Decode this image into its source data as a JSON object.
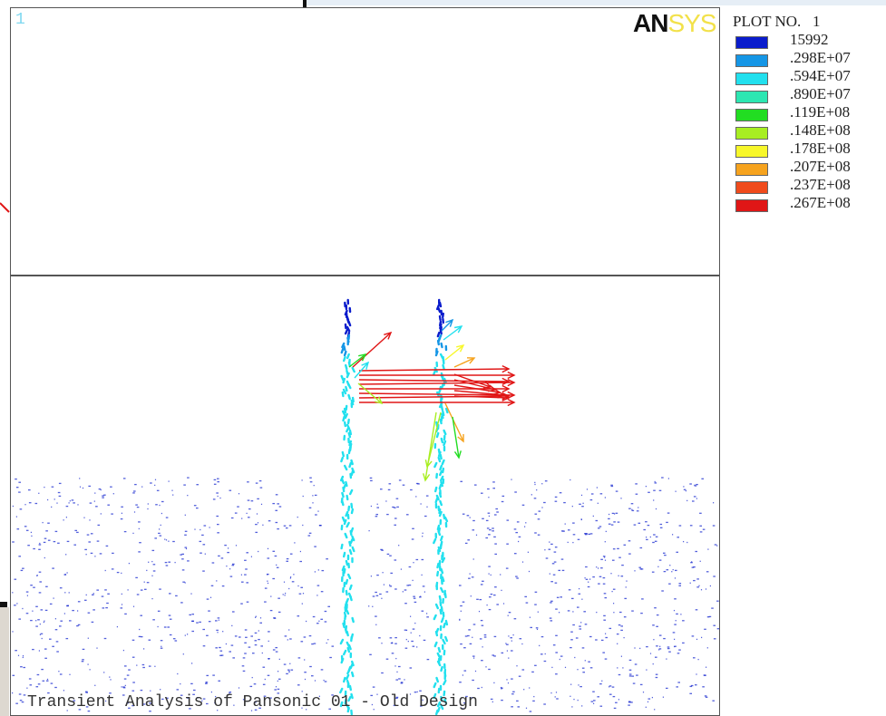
{
  "window": {
    "number": "1"
  },
  "logo": {
    "text_dark": "AN",
    "text_light": "SYS"
  },
  "legend": {
    "label": "PLOT NO.   1",
    "entries": [
      {
        "value": "15992",
        "color": "#0a1ccc"
      },
      {
        "value": ".298E+07",
        "color": "#1596e6"
      },
      {
        "value": ".594E+07",
        "color": "#22e0ee"
      },
      {
        "value": ".890E+07",
        "color": "#2de6b2"
      },
      {
        "value": ".119E+08",
        "color": "#22dd22"
      },
      {
        "value": ".148E+08",
        "color": "#a8ee22"
      },
      {
        "value": ".178E+08",
        "color": "#f7f72a"
      },
      {
        "value": ".207E+08",
        "color": "#f6a31e"
      },
      {
        "value": ".237E+08",
        "color": "#f04b1c"
      },
      {
        "value": ".267E+08",
        "color": "#e01616"
      }
    ]
  },
  "plot": {
    "title": "Transient Analysis of Pansonic 01 - Old Design"
  }
}
